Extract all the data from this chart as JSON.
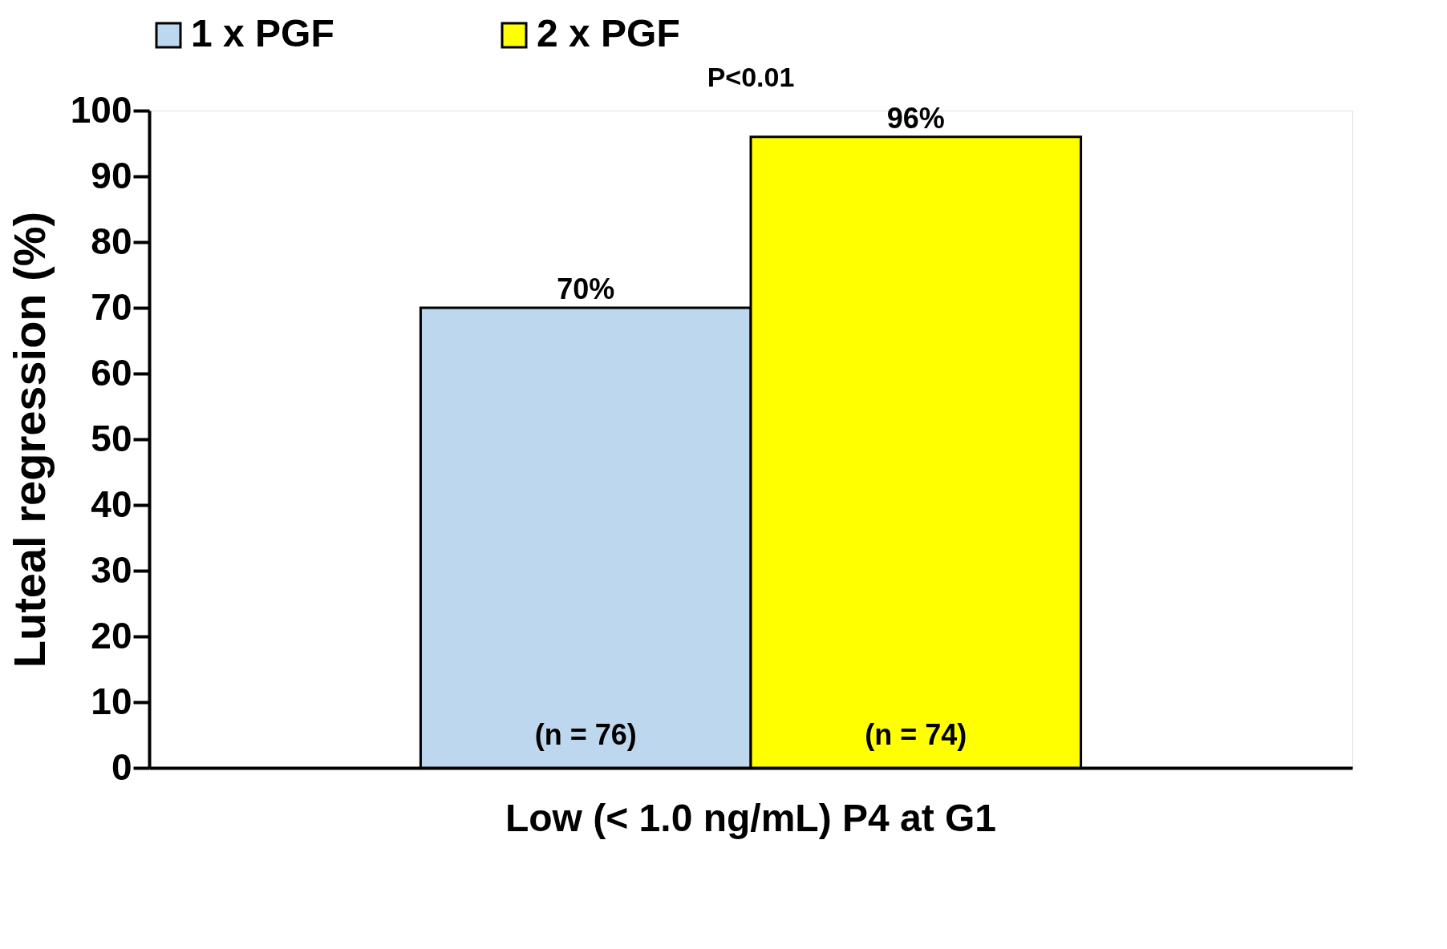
{
  "chart_data": {
    "type": "bar",
    "ylabel": "Luteal regression (%)",
    "categories": [
      "Low (< 1.0 ng/mL) P4 at G1"
    ],
    "series": [
      {
        "name": "1 x PGF",
        "color": "#bdd7ee",
        "values": [
          70
        ],
        "value_labels": [
          "70%"
        ]
      },
      {
        "name": "2 x PGF",
        "color": "#ffff00",
        "values": [
          96
        ],
        "value_labels": [
          "96%"
        ]
      }
    ],
    "annotations": [
      "(n = 76)",
      "(n = 74)",
      "P<0.01"
    ],
    "ylim": [
      0,
      100
    ],
    "yticks": [
      0,
      10,
      20,
      30,
      40,
      50,
      60,
      70,
      80,
      90,
      100
    ],
    "grid": false,
    "legend": "top"
  }
}
